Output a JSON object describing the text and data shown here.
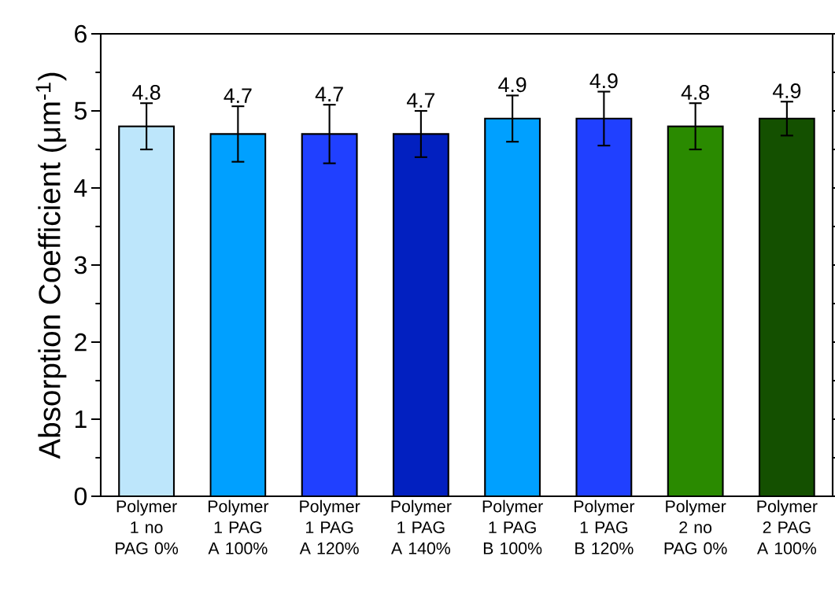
{
  "chart_data": {
    "type": "bar",
    "ylabel": "Absorption Coefficient (μm$^{-1}$)",
    "categories": [
      "Polymer 1 no PAG 0%",
      "Polymer 1 PAG A 100%",
      "Polymer 1 PAG A 120%",
      "Polymer 1 PAG A 140%",
      "Polymer 1 PAG B 100%",
      "Polymer 1 PAG B 120%",
      "Polymer 2 no PAG 0%",
      "Polymer 2 PAG A 100%"
    ],
    "values": [
      4.8,
      4.7,
      4.7,
      4.7,
      4.9,
      4.9,
      4.8,
      4.9
    ],
    "errors": [
      0.3,
      0.36,
      0.38,
      0.3,
      0.3,
      0.35,
      0.3,
      0.22
    ],
    "colors": [
      "#bde6fb",
      "#00a0ff",
      "#2040ff",
      "#0220c0",
      "#00a0ff",
      "#2040ff",
      "#2a8a00",
      "#145000"
    ],
    "ylim": [
      0,
      6
    ],
    "yticks": [
      0,
      1,
      2,
      3,
      4,
      5,
      6
    ],
    "data_labels": true
  }
}
